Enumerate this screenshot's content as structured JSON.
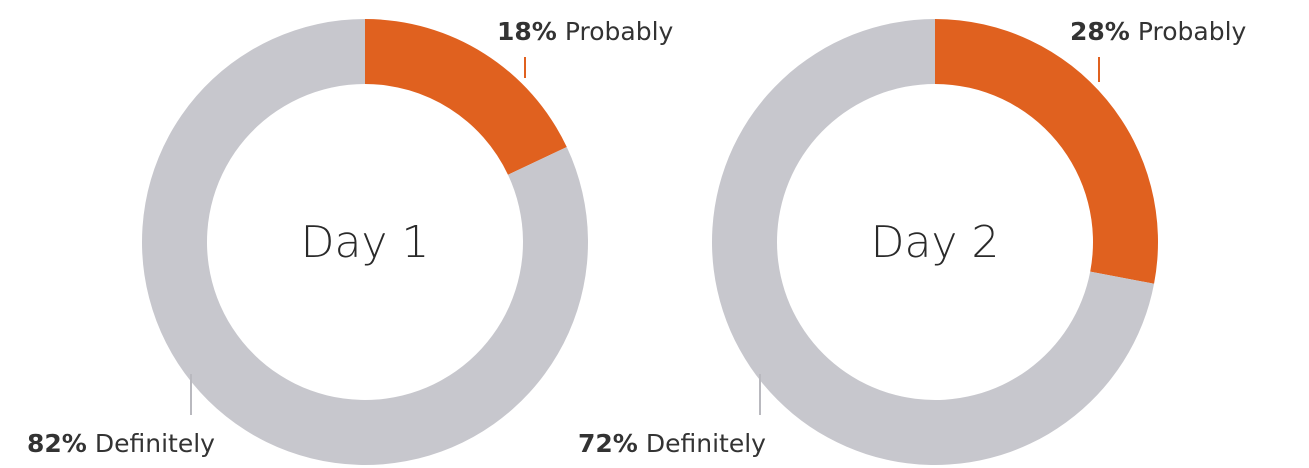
{
  "chart_data": [
    {
      "type": "pie",
      "title": "Day 1",
      "slices": [
        {
          "label": "Probably",
          "value": 18,
          "value_label": "18%",
          "color": "#e0611f"
        },
        {
          "label": "Definitely",
          "value": 82,
          "value_label": "82%",
          "color": "#c7c7cd"
        }
      ]
    },
    {
      "type": "pie",
      "title": "Day 2",
      "slices": [
        {
          "label": "Probably",
          "value": 28,
          "value_label": "28%",
          "color": "#e0611f"
        },
        {
          "label": "Definitely",
          "value": 72,
          "value_label": "72%",
          "color": "#c7c7cd"
        }
      ]
    }
  ]
}
